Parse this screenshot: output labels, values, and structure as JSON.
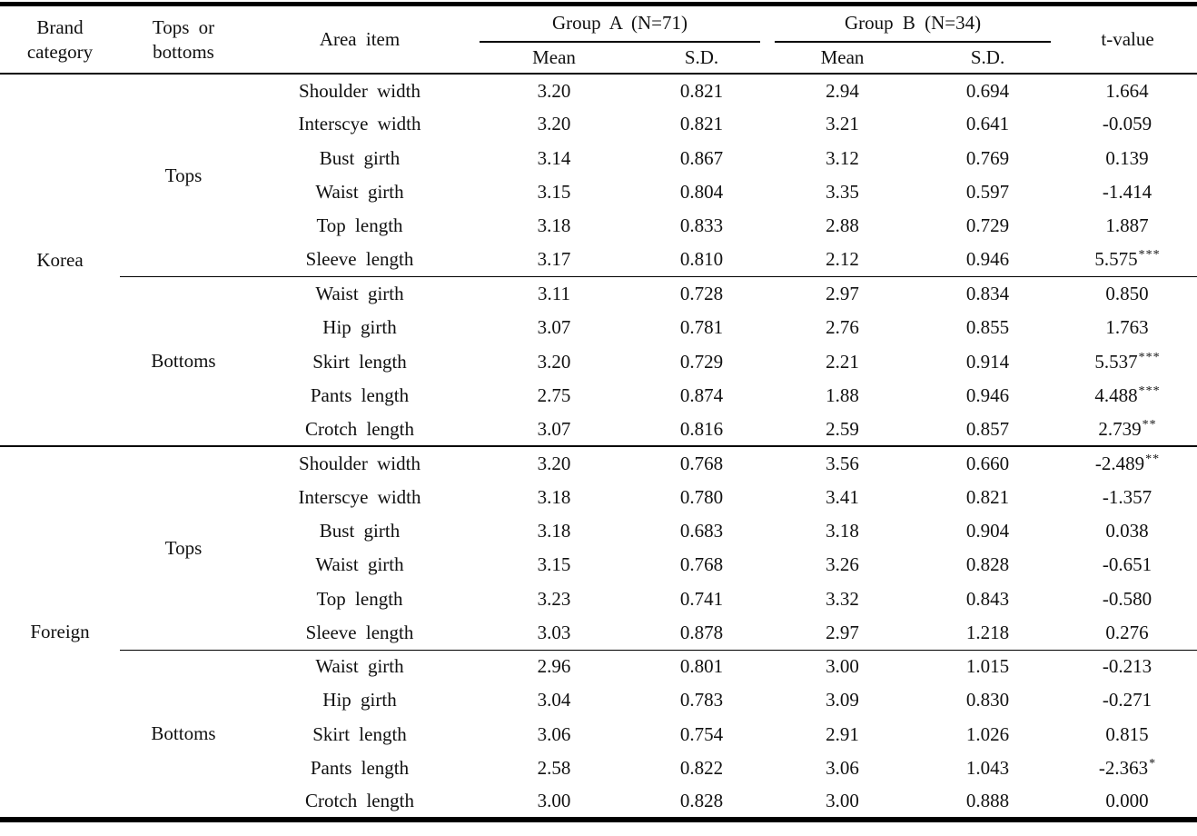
{
  "table": {
    "header": {
      "brand_category": "Brand category",
      "tops_or_bottoms": "Tops or bottoms",
      "area_item": "Area item",
      "group_a": "Group A (N=71)",
      "group_b": "Group B (N=34)",
      "mean_a": "Mean",
      "sd_a": "S.D.",
      "mean_b": "Mean",
      "sd_b": "S.D.",
      "t_value": "t-value"
    },
    "sections": [
      {
        "brand": "Korea",
        "groups": [
          {
            "type": "Tops",
            "rows": [
              {
                "item": "Shoulder width",
                "a_mean": "3.20",
                "a_sd": "0.821",
                "b_mean": "2.94",
                "b_sd": "0.694",
                "t": "1.664",
                "sig": ""
              },
              {
                "item": "Interscye width",
                "a_mean": "3.20",
                "a_sd": "0.821",
                "b_mean": "3.21",
                "b_sd": "0.641",
                "t": "-0.059",
                "sig": ""
              },
              {
                "item": "Bust girth",
                "a_mean": "3.14",
                "a_sd": "0.867",
                "b_mean": "3.12",
                "b_sd": "0.769",
                "t": "0.139",
                "sig": ""
              },
              {
                "item": "Waist girth",
                "a_mean": "3.15",
                "a_sd": "0.804",
                "b_mean": "3.35",
                "b_sd": "0.597",
                "t": "-1.414",
                "sig": ""
              },
              {
                "item": "Top length",
                "a_mean": "3.18",
                "a_sd": "0.833",
                "b_mean": "2.88",
                "b_sd": "0.729",
                "t": "1.887",
                "sig": ""
              },
              {
                "item": "Sleeve length",
                "a_mean": "3.17",
                "a_sd": "0.810",
                "b_mean": "2.12",
                "b_sd": "0.946",
                "t": "5.575",
                "sig": "***"
              }
            ]
          },
          {
            "type": "Bottoms",
            "rows": [
              {
                "item": "Waist girth",
                "a_mean": "3.11",
                "a_sd": "0.728",
                "b_mean": "2.97",
                "b_sd": "0.834",
                "t": "0.850",
                "sig": ""
              },
              {
                "item": "Hip girth",
                "a_mean": "3.07",
                "a_sd": "0.781",
                "b_mean": "2.76",
                "b_sd": "0.855",
                "t": "1.763",
                "sig": ""
              },
              {
                "item": "Skirt length",
                "a_mean": "3.20",
                "a_sd": "0.729",
                "b_mean": "2.21",
                "b_sd": "0.914",
                "t": "5.537",
                "sig": "***"
              },
              {
                "item": "Pants length",
                "a_mean": "2.75",
                "a_sd": "0.874",
                "b_mean": "1.88",
                "b_sd": "0.946",
                "t": "4.488",
                "sig": "***"
              },
              {
                "item": "Crotch length",
                "a_mean": "3.07",
                "a_sd": "0.816",
                "b_mean": "2.59",
                "b_sd": "0.857",
                "t": "2.739",
                "sig": "**"
              }
            ]
          }
        ]
      },
      {
        "brand": "Foreign",
        "groups": [
          {
            "type": "Tops",
            "rows": [
              {
                "item": "Shoulder width",
                "a_mean": "3.20",
                "a_sd": "0.768",
                "b_mean": "3.56",
                "b_sd": "0.660",
                "t": "-2.489",
                "sig": "**"
              },
              {
                "item": "Interscye width",
                "a_mean": "3.18",
                "a_sd": "0.780",
                "b_mean": "3.41",
                "b_sd": "0.821",
                "t": "-1.357",
                "sig": ""
              },
              {
                "item": "Bust girth",
                "a_mean": "3.18",
                "a_sd": "0.683",
                "b_mean": "3.18",
                "b_sd": "0.904",
                "t": "0.038",
                "sig": ""
              },
              {
                "item": "Waist girth",
                "a_mean": "3.15",
                "a_sd": "0.768",
                "b_mean": "3.26",
                "b_sd": "0.828",
                "t": "-0.651",
                "sig": ""
              },
              {
                "item": "Top length",
                "a_mean": "3.23",
                "a_sd": "0.741",
                "b_mean": "3.32",
                "b_sd": "0.843",
                "t": "-0.580",
                "sig": ""
              },
              {
                "item": "Sleeve length",
                "a_mean": "3.03",
                "a_sd": "0.878",
                "b_mean": "2.97",
                "b_sd": "1.218",
                "t": "0.276",
                "sig": ""
              }
            ]
          },
          {
            "type": "Bottoms",
            "rows": [
              {
                "item": "Waist girth",
                "a_mean": "2.96",
                "a_sd": "0.801",
                "b_mean": "3.00",
                "b_sd": "1.015",
                "t": "-0.213",
                "sig": ""
              },
              {
                "item": "Hip girth",
                "a_mean": "3.04",
                "a_sd": "0.783",
                "b_mean": "3.09",
                "b_sd": "0.830",
                "t": "-0.271",
                "sig": ""
              },
              {
                "item": "Skirt length",
                "a_mean": "3.06",
                "a_sd": "0.754",
                "b_mean": "2.91",
                "b_sd": "1.026",
                "t": "0.815",
                "sig": ""
              },
              {
                "item": "Pants length",
                "a_mean": "2.58",
                "a_sd": "0.822",
                "b_mean": "3.06",
                "b_sd": "1.043",
                "t": "-2.363",
                "sig": "*"
              },
              {
                "item": "Crotch length",
                "a_mean": "3.00",
                "a_sd": "0.828",
                "b_mean": "3.00",
                "b_sd": "0.888",
                "t": "0.000",
                "sig": ""
              }
            ]
          }
        ]
      }
    ]
  }
}
